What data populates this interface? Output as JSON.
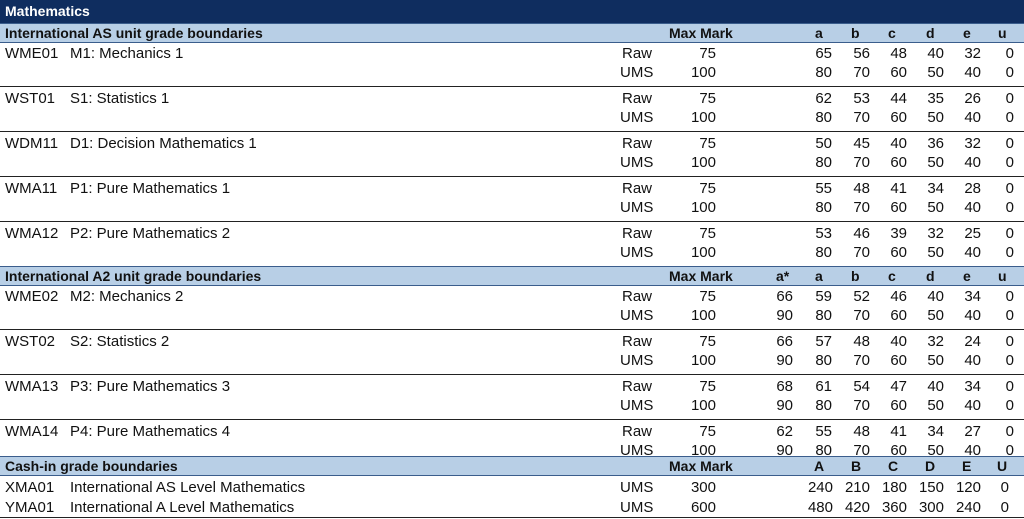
{
  "title": "Mathematics",
  "as_section": {
    "heading": "International AS unit grade boundaries",
    "max_mark_label": "Max Mark",
    "grades": [
      "a",
      "b",
      "c",
      "d",
      "e",
      "u"
    ],
    "units": [
      {
        "code": "WME01",
        "name": "M1: Mechanics 1",
        "raw": {
          "label": "Raw",
          "max": "75",
          "vals": [
            "65",
            "56",
            "48",
            "40",
            "32",
            "0"
          ]
        },
        "ums": {
          "label": "UMS",
          "max": "100",
          "vals": [
            "80",
            "70",
            "60",
            "50",
            "40",
            "0"
          ]
        }
      },
      {
        "code": "WST01",
        "name": "S1: Statistics 1",
        "raw": {
          "label": "Raw",
          "max": "75",
          "vals": [
            "62",
            "53",
            "44",
            "35",
            "26",
            "0"
          ]
        },
        "ums": {
          "label": "UMS",
          "max": "100",
          "vals": [
            "80",
            "70",
            "60",
            "50",
            "40",
            "0"
          ]
        }
      },
      {
        "code": "WDM11",
        "name": "D1: Decision Mathematics 1",
        "raw": {
          "label": "Raw",
          "max": "75",
          "vals": [
            "50",
            "45",
            "40",
            "36",
            "32",
            "0"
          ]
        },
        "ums": {
          "label": "UMS",
          "max": "100",
          "vals": [
            "80",
            "70",
            "60",
            "50",
            "40",
            "0"
          ]
        }
      },
      {
        "code": "WMA11",
        "name": "P1: Pure Mathematics 1",
        "raw": {
          "label": "Raw",
          "max": "75",
          "vals": [
            "55",
            "48",
            "41",
            "34",
            "28",
            "0"
          ]
        },
        "ums": {
          "label": "UMS",
          "max": "100",
          "vals": [
            "80",
            "70",
            "60",
            "50",
            "40",
            "0"
          ]
        }
      },
      {
        "code": "WMA12",
        "name": "P2: Pure Mathematics 2",
        "raw": {
          "label": "Raw",
          "max": "75",
          "vals": [
            "53",
            "46",
            "39",
            "32",
            "25",
            "0"
          ]
        },
        "ums": {
          "label": "UMS",
          "max": "100",
          "vals": [
            "80",
            "70",
            "60",
            "50",
            "40",
            "0"
          ]
        }
      }
    ]
  },
  "a2_section": {
    "heading": "International A2 unit grade boundaries",
    "max_mark_label": "Max Mark",
    "grades": [
      "a*",
      "a",
      "b",
      "c",
      "d",
      "e",
      "u"
    ],
    "units": [
      {
        "code": "WME02",
        "name": "M2: Mechanics 2",
        "raw": {
          "label": "Raw",
          "max": "75",
          "vals": [
            "66",
            "59",
            "52",
            "46",
            "40",
            "34",
            "0"
          ]
        },
        "ums": {
          "label": "UMS",
          "max": "100",
          "vals": [
            "90",
            "80",
            "70",
            "60",
            "50",
            "40",
            "0"
          ]
        }
      },
      {
        "code": "WST02",
        "name": "S2: Statistics 2",
        "raw": {
          "label": "Raw",
          "max": "75",
          "vals": [
            "66",
            "57",
            "48",
            "40",
            "32",
            "24",
            "0"
          ]
        },
        "ums": {
          "label": "UMS",
          "max": "100",
          "vals": [
            "90",
            "80",
            "70",
            "60",
            "50",
            "40",
            "0"
          ]
        }
      },
      {
        "code": "WMA13",
        "name": "P3: Pure Mathematics 3",
        "raw": {
          "label": "Raw",
          "max": "75",
          "vals": [
            "68",
            "61",
            "54",
            "47",
            "40",
            "34",
            "0"
          ]
        },
        "ums": {
          "label": "UMS",
          "max": "100",
          "vals": [
            "90",
            "80",
            "70",
            "60",
            "50",
            "40",
            "0"
          ]
        }
      },
      {
        "code": "WMA14",
        "name": "P4: Pure Mathematics 4",
        "raw": {
          "label": "Raw",
          "max": "75",
          "vals": [
            "62",
            "55",
            "48",
            "41",
            "34",
            "27",
            "0"
          ]
        },
        "ums": {
          "label": "UMS",
          "max": "100",
          "vals": [
            "90",
            "80",
            "70",
            "60",
            "50",
            "40",
            "0"
          ]
        }
      }
    ]
  },
  "cashin_section": {
    "heading": "Cash-in grade boundaries",
    "max_mark_label": "Max Mark",
    "grades": [
      "A",
      "B",
      "C",
      "D",
      "E",
      "U"
    ],
    "rows": [
      {
        "code": "XMA01",
        "name": "International AS Level Mathematics",
        "label": "UMS",
        "max": "300",
        "vals": [
          "240",
          "210",
          "180",
          "150",
          "120",
          "0"
        ]
      },
      {
        "code": "YMA01",
        "name": "International A Level Mathematics",
        "label": "UMS",
        "max": "600",
        "vals": [
          "480",
          "420",
          "360",
          "300",
          "240",
          "0"
        ]
      }
    ]
  }
}
